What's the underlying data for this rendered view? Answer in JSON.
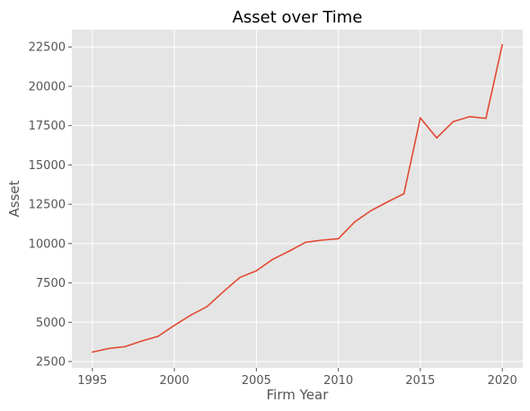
{
  "chart_data": {
    "type": "line",
    "title": "Asset over Time",
    "xlabel": "Firm Year",
    "ylabel": "Asset",
    "xlim": [
      1993.75,
      2021.25
    ],
    "ylim": [
      2100,
      23600
    ],
    "xticks": [
      1995,
      2000,
      2005,
      2010,
      2015,
      2020
    ],
    "yticks": [
      2500,
      5000,
      7500,
      10000,
      12500,
      15000,
      17500,
      20000,
      22500
    ],
    "grid": true,
    "series": [
      {
        "color": "#E24A33",
        "x": [
          1995,
          1996,
          1997,
          1998,
          1999,
          2000,
          2001,
          2002,
          2003,
          2004,
          2005,
          2006,
          2007,
          2008,
          2009,
          2010,
          2011,
          2012,
          2013,
          2014,
          2015,
          2016,
          2017,
          2018,
          2019,
          2020
        ],
        "y": [
          3100,
          3330,
          3450,
          3800,
          4100,
          4800,
          5450,
          6000,
          6950,
          7850,
          8270,
          9000,
          9520,
          10080,
          10220,
          10310,
          11380,
          12100,
          12650,
          13170,
          17990,
          16720,
          17750,
          18070,
          17960,
          22650
        ]
      }
    ]
  }
}
